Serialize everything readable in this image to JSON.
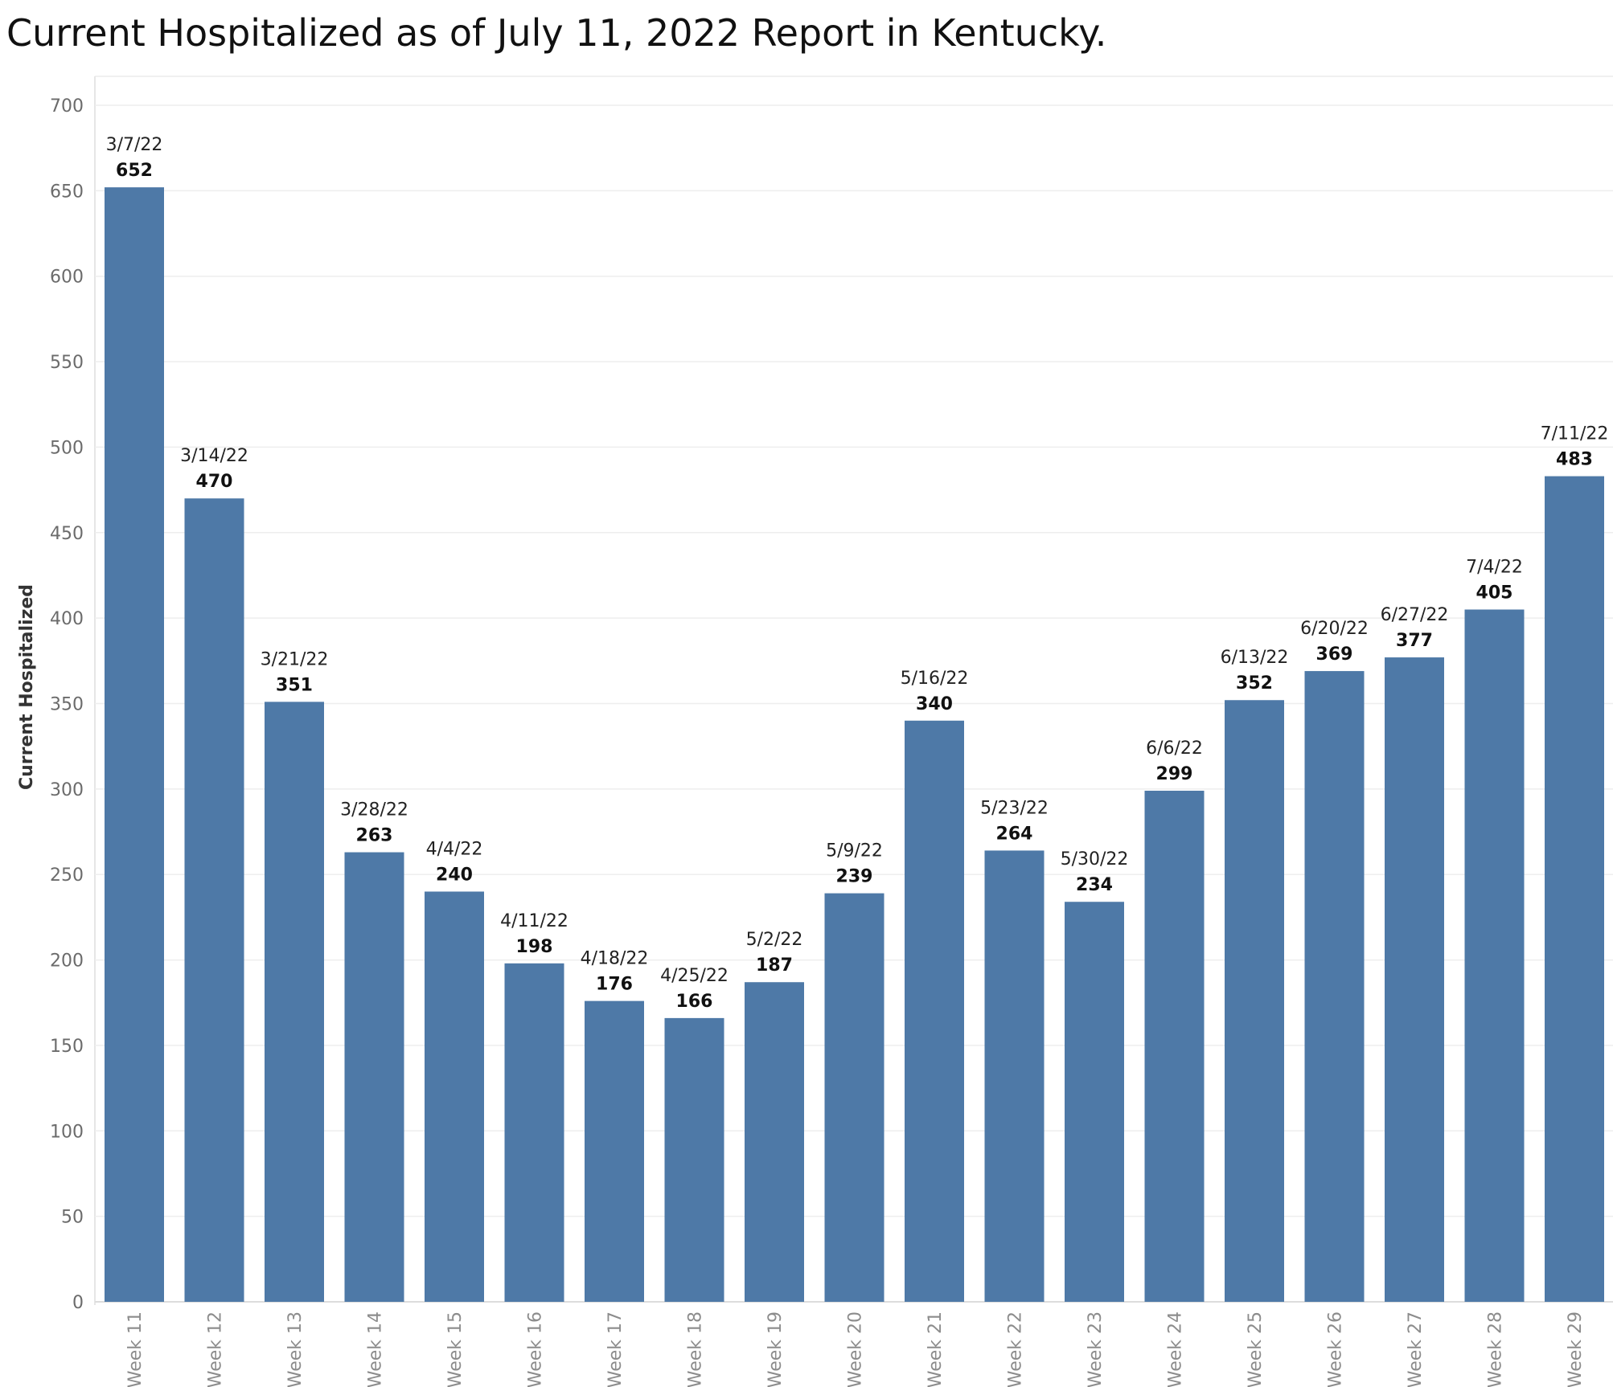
{
  "chart_data": {
    "type": "bar",
    "title": "Current Hospitalized as of July 11, 2022 Report in Kentucky.",
    "xlabel": "",
    "ylabel": "Current Hospitalized",
    "ylim": [
      0,
      700
    ],
    "yticks": [
      0,
      50,
      100,
      150,
      200,
      250,
      300,
      350,
      400,
      450,
      500,
      550,
      600,
      650,
      700
    ],
    "grid": true,
    "bar_color": "#4e79a7",
    "categories": [
      "Week 11",
      "Week 12",
      "Week 13",
      "Week 14",
      "Week 15",
      "Week 16",
      "Week 17",
      "Week 18",
      "Week 19",
      "Week 20",
      "Week 21",
      "Week 22",
      "Week 23",
      "Week 24",
      "Week 25",
      "Week 26",
      "Week 27",
      "Week 28",
      "Week 29"
    ],
    "dates": [
      "3/7/22",
      "3/14/22",
      "3/21/22",
      "3/28/22",
      "4/4/22",
      "4/11/22",
      "4/18/22",
      "4/25/22",
      "5/2/22",
      "5/9/22",
      "5/16/22",
      "5/23/22",
      "5/30/22",
      "6/6/22",
      "6/13/22",
      "6/20/22",
      "6/27/22",
      "7/4/22",
      "7/11/22"
    ],
    "values": [
      652,
      470,
      351,
      263,
      240,
      198,
      176,
      166,
      187,
      239,
      340,
      264,
      234,
      299,
      352,
      369,
      377,
      405,
      483
    ]
  }
}
